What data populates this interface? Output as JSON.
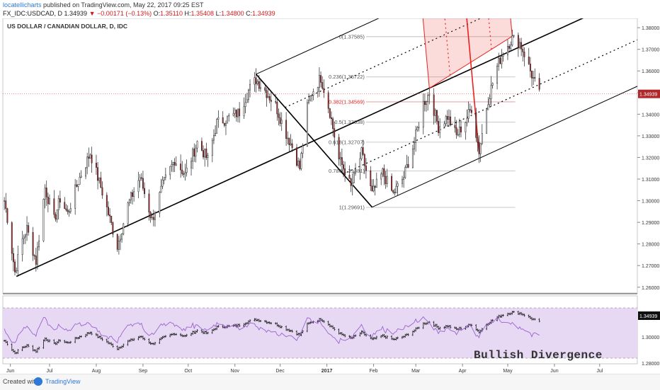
{
  "header": {
    "author": "locatellicharts",
    "published": "published on TradingView.com, May 22, 2017 09:25 EST",
    "symbol": "FX_IDC:USDCAD, D",
    "last": "1.34939",
    "change": "−0.00171 (−0.13%)",
    "o_label": "O:",
    "o_value": "1.35110",
    "h_label": "H:",
    "h_value": "1.35408",
    "l_label": "L:",
    "l_value": "1.34800",
    "c_label": "C:",
    "c_value": "1.34939"
  },
  "chart_title": "US DOLLAR / CANADIAN DOLLAR, D, IDC",
  "annotation": "Bullish Divergence",
  "footer": {
    "created": "Created with",
    "brand": "TradingView"
  },
  "colors": {
    "up": "#ffffff",
    "down": "#b0272a",
    "red": "#e8231f",
    "rsi": "#9a63cf",
    "rsi_band": "#e7d9f3"
  },
  "chart_data": {
    "type": "candlestick",
    "title": "US DOLLAR / CANADIAN DOLLAR, D, IDC",
    "price_axis": {
      "ticks": [
        "1.38000",
        "1.37000",
        "1.36000",
        "1.35000",
        "1.34000",
        "1.33000",
        "1.32000",
        "1.31000",
        "1.30000",
        "1.29000",
        "1.28000",
        "1.27000",
        "1.26000"
      ],
      "range": [
        1.2573,
        1.3843
      ]
    },
    "lower_axis": {
      "ticks": [
        "1.28000",
        "1.30000"
      ],
      "last_value": "1.34939"
    },
    "last_price_label": "1.34939",
    "time_axis": [
      "Jun",
      "Jul",
      "Aug",
      "Sep",
      "Oct",
      "Nov",
      "Dec",
      "2017",
      "Feb",
      "Mar",
      "Apr",
      "May",
      "Jun",
      "Jul"
    ],
    "price_path": [
      [
        "2016-06-01",
        1.3
      ],
      [
        "2016-06-03",
        1.292
      ],
      [
        "2016-06-08",
        1.267
      ],
      [
        "2016-06-13",
        1.282
      ],
      [
        "2016-06-16",
        1.287
      ],
      [
        "2016-06-22",
        1.272
      ],
      [
        "2016-06-28",
        1.306
      ],
      [
        "2016-07-04",
        1.291
      ],
      [
        "2016-07-08",
        1.301
      ],
      [
        "2016-07-13",
        1.294
      ],
      [
        "2016-07-20",
        1.309
      ],
      [
        "2016-07-28",
        1.322
      ],
      [
        "2016-08-05",
        1.304
      ],
      [
        "2016-08-15",
        1.279
      ],
      [
        "2016-08-22",
        1.298
      ],
      [
        "2016-08-30",
        1.311
      ],
      [
        "2016-09-07",
        1.291
      ],
      [
        "2016-09-14",
        1.307
      ],
      [
        "2016-09-22",
        1.319
      ],
      [
        "2016-09-29",
        1.312
      ],
      [
        "2016-10-07",
        1.327
      ],
      [
        "2016-10-14",
        1.319
      ],
      [
        "2016-10-20",
        1.336
      ],
      [
        "2016-10-27",
        1.338
      ],
      [
        "2016-11-04",
        1.341
      ],
      [
        "2016-11-10",
        1.351
      ],
      [
        "2016-11-15",
        1.356
      ],
      [
        "2016-11-21",
        1.351
      ],
      [
        "2016-11-28",
        1.344
      ],
      [
        "2016-12-05",
        1.331
      ],
      [
        "2016-12-09",
        1.325
      ],
      [
        "2016-12-14",
        1.315
      ],
      [
        "2016-12-19",
        1.343
      ],
      [
        "2016-12-22",
        1.35
      ],
      [
        "2016-12-28",
        1.357
      ],
      [
        "2017-01-03",
        1.341
      ],
      [
        "2017-01-09",
        1.319
      ],
      [
        "2017-01-13",
        1.314
      ],
      [
        "2017-01-17",
        1.306
      ],
      [
        "2017-01-24",
        1.322
      ],
      [
        "2017-01-31",
        1.303
      ],
      [
        "2017-02-07",
        1.313
      ],
      [
        "2017-02-14",
        1.303
      ],
      [
        "2017-02-21",
        1.311
      ],
      [
        "2017-02-28",
        1.327
      ],
      [
        "2017-03-06",
        1.345
      ],
      [
        "2017-03-10",
        1.35
      ],
      [
        "2017-03-16",
        1.334
      ],
      [
        "2017-03-22",
        1.339
      ],
      [
        "2017-03-28",
        1.33
      ],
      [
        "2017-04-03",
        1.337
      ],
      [
        "2017-04-07",
        1.343
      ],
      [
        "2017-04-12",
        1.323
      ],
      [
        "2017-04-18",
        1.347
      ],
      [
        "2017-04-24",
        1.362
      ],
      [
        "2017-04-28",
        1.369
      ],
      [
        "2017-05-04",
        1.375
      ],
      [
        "2017-05-09",
        1.373
      ],
      [
        "2017-05-12",
        1.368
      ],
      [
        "2017-05-16",
        1.36
      ],
      [
        "2017-05-22",
        1.349
      ]
    ],
    "fibonacci": [
      {
        "label": "0(1.37585)",
        "value": 1.37585
      },
      {
        "label": "0.236(1.35722)",
        "value": 1.35722
      },
      {
        "label": "0.382(1.34569)",
        "value": 1.34569
      },
      {
        "label": "0.5(1.33638)",
        "value": 1.33638
      },
      {
        "label": "0.618(1.32707)",
        "value": 1.32707
      },
      {
        "label": "0.786(1.31381)",
        "value": 1.31381
      },
      {
        "label": "1(1.29691)",
        "value": 1.29691
      }
    ],
    "pitchforks": [
      {
        "color": "black",
        "pivots": [
          [
            "2016-06-09",
            1.265
          ],
          [
            "2016-11-15",
            1.3585
          ],
          [
            "2017-01-31",
            1.297
          ]
        ]
      },
      {
        "color": "red",
        "pivots": [
          [
            "2017-04-12",
            1.3222
          ],
          [
            "2017-03-10",
            1.352
          ],
          [
            "2017-05-04",
            1.376
          ]
        ]
      }
    ],
    "trendline": [
      [
        "2016-11-15",
        1.3585
      ],
      [
        "2017-01-31",
        1.297
      ]
    ],
    "annotations": [
      "Bullish Divergence"
    ]
  }
}
